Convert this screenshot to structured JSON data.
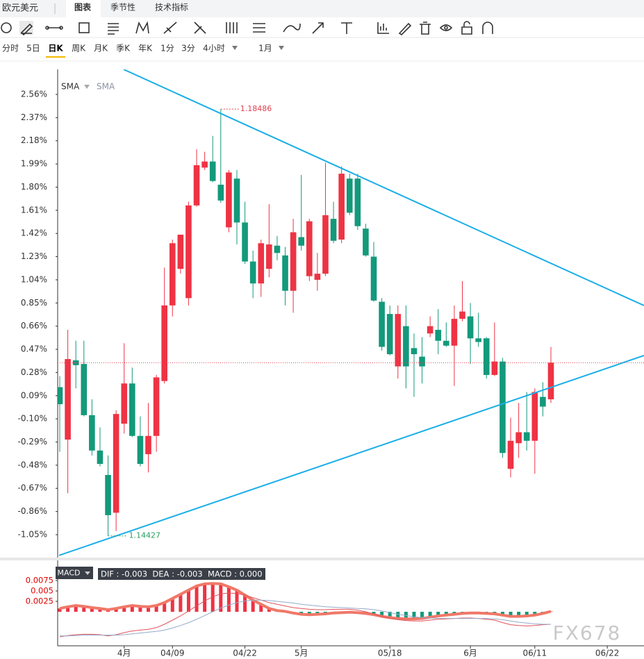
{
  "header": {
    "symbol": "欧元美元",
    "tabs": [
      "图表",
      "季节性",
      "技术指标"
    ],
    "active_tab": 0,
    "periods": [
      "分时",
      "5日",
      "日K",
      "周K",
      "月K",
      "季K",
      "年K",
      "1分",
      "3分",
      "4小时"
    ],
    "active_period": 2,
    "range": "1月"
  },
  "chart_data": [
    {
      "type": "candlestick",
      "indicators": [
        "SMA",
        "SMA"
      ],
      "categories": [
        null,
        null,
        null,
        null,
        null,
        null,
        null,
        null,
        "4月",
        null,
        null,
        null,
        null,
        null,
        "04/09",
        null,
        null,
        null,
        null,
        null,
        null,
        null,
        null,
        "04/22",
        null,
        null,
        null,
        null,
        null,
        null,
        "5月",
        null,
        null,
        null,
        null,
        null,
        null,
        null,
        null,
        null,
        null,
        "05/18",
        null,
        null,
        null,
        null,
        null,
        null,
        null,
        null,
        null,
        "6月",
        null,
        null,
        null,
        null,
        null,
        null,
        null,
        "06/11",
        null,
        null,
        null,
        null,
        null,
        null,
        null,
        null,
        "06/22",
        null,
        null,
        null,
        null
      ],
      "open": [
        0.16,
        -0.27,
        0.38,
        0.35,
        -0.07,
        -0.36,
        -0.56,
        -0.87,
        -0.14,
        0.19,
        -0.24,
        -0.39,
        -0.24,
        0.21,
        0.83,
        1.13,
        0.89,
        1.65,
        1.96,
        2.01,
        1.82,
        1.47,
        1.87,
        1.51,
        1.19,
        1.01,
        1.13,
        1.32,
        1.24,
        0.95,
        1.39,
        1.07,
        1.04,
        1.09,
        1.54,
        1.37,
        1.87,
        1.87,
        1.46,
        1.23,
        0.86,
        0.76,
        0.33,
        0.66,
        0.48,
        0.41,
        0.6,
        0.63,
        0.54,
        0.5,
        0.72,
        0.74,
        0.56,
        0.56,
        0.26,
        0.37,
        -0.51,
        -0.3,
        -0.21,
        -0.28,
        0.08,
        0.06,
        null,
        null,
        null,
        null,
        null,
        null,
        null,
        null,
        null,
        null,
        null
      ],
      "high": [
        0.25,
        0.63,
        0.54,
        0.54,
        0.06,
        -0.17,
        -0.4,
        -0.03,
        0.52,
        0.32,
        -0.08,
        0.03,
        0.26,
        1.14,
        1.37,
        1.41,
        1.68,
        2.11,
        2.09,
        2.22,
        2.44,
        1.94,
        1.94,
        1.68,
        1.28,
        1.37,
        1.66,
        1.4,
        1.31,
        1.54,
        1.9,
        1.54,
        1.26,
        2.0,
        1.68,
        1.97,
        1.91,
        1.91,
        1.5,
        1.35,
        0.89,
        0.83,
        0.83,
        0.83,
        0.6,
        0.57,
        0.74,
        0.8,
        0.69,
        0.83,
        1.03,
        0.85,
        0.77,
        0.57,
        0.69,
        0.4,
        -0.09,
        0.03,
        0.12,
        0.15,
        0.2,
        0.49,
        null,
        null,
        null,
        null,
        null,
        null,
        null,
        null,
        null,
        null,
        null
      ],
      "low": [
        -0.37,
        -0.71,
        0.15,
        -0.08,
        -0.4,
        -0.49,
        -1.06,
        -1.02,
        -0.22,
        -0.25,
        -0.49,
        -0.54,
        -0.37,
        0.19,
        0.74,
        1.09,
        0.83,
        1.64,
        1.94,
        1.84,
        1.67,
        1.43,
        1.33,
        1.17,
        0.89,
        0.9,
        1.06,
        1.2,
        0.83,
        0.77,
        1.28,
        1.03,
        0.95,
        1.07,
        1.34,
        1.34,
        1.57,
        1.45,
        1.23,
        0.86,
        0.46,
        0.42,
        0.23,
        0.15,
        0.08,
        0.19,
        0.57,
        0.43,
        0.49,
        0.17,
        0.7,
        0.35,
        0.49,
        0.23,
        0.25,
        -0.42,
        -0.58,
        -0.42,
        -0.36,
        -0.55,
        -0.08,
        0.03,
        null,
        null,
        null,
        null,
        null,
        null,
        null,
        null,
        null,
        null,
        null
      ],
      "close": [
        0.02,
        0.39,
        0.34,
        -0.07,
        -0.36,
        -0.47,
        -0.89,
        -0.06,
        0.19,
        -0.24,
        -0.47,
        -0.24,
        0.24,
        0.83,
        1.34,
        1.41,
        1.65,
        1.98,
        2.01,
        1.85,
        1.69,
        1.92,
        1.51,
        1.19,
        1.01,
        1.34,
        1.33,
        1.26,
        0.95,
        1.43,
        1.32,
        1.52,
        1.09,
        1.57,
        1.36,
        1.91,
        1.59,
        1.48,
        1.24,
        0.87,
        0.49,
        0.43,
        0.76,
        0.33,
        0.43,
        0.33,
        0.66,
        0.54,
        0.5,
        0.72,
        0.78,
        0.56,
        0.53,
        0.26,
        0.37,
        -0.38,
        -0.28,
        -0.21,
        -0.28,
        0.12,
        0.0,
        0.36,
        null,
        null,
        null,
        null,
        null,
        null,
        null,
        null,
        null,
        null,
        null
      ],
      "up_color": "#ee3344",
      "down_color": "#13997b",
      "high_label": "1.18486",
      "low_label": "1.14427",
      "trendlines": [
        {
          "x": [
            7.94,
            72.56
          ],
          "y": [
            2.765,
            0.829
          ]
        },
        {
          "x": [
            -0.09,
            72.56
          ],
          "y": [
            -1.22,
            0.419
          ]
        }
      ],
      "trend_color": "#1aaee8",
      "ylim": [
        -1.238,
        2.765
      ],
      "yticks": [
        {
          "value": 2.56,
          "label": "2.56%"
        },
        {
          "value": 2.37,
          "label": "2.37%"
        },
        {
          "value": 2.18,
          "label": "2.18%"
        },
        {
          "value": 1.99,
          "label": "1.99%"
        },
        {
          "value": 1.8,
          "label": "1.80%"
        },
        {
          "value": 1.61,
          "label": "1.61%"
        },
        {
          "value": 1.42,
          "label": "1.42%"
        },
        {
          "value": 1.23,
          "label": "1.23%"
        },
        {
          "value": 1.04,
          "label": "1.04%"
        },
        {
          "value": 0.85,
          "label": "0.85%"
        },
        {
          "value": 0.66,
          "label": "0.66%"
        },
        {
          "value": 0.47,
          "label": "0.47%"
        },
        {
          "value": 0.28,
          "label": "0.28%"
        },
        {
          "value": 0.09,
          "label": "0.09%"
        },
        {
          "value": -0.1,
          "label": "-0.10%"
        },
        {
          "value": -0.29,
          "label": "-0.29%"
        },
        {
          "value": -0.48,
          "label": "-0.48%"
        },
        {
          "value": -0.67,
          "label": "-0.67%"
        },
        {
          "value": -0.86,
          "label": "-0.86%"
        },
        {
          "value": -1.05,
          "label": "-1.05%"
        }
      ]
    },
    {
      "type": "macd",
      "title": "MACD",
      "readout": "DIF : -0.003  DEA : -0.003  MACD : 0.000",
      "series": [
        {
          "name": "DIF",
          "color": "#e2525a",
          "values": [
            -0.006,
            -0.0057,
            -0.0055,
            -0.0054,
            -0.0054,
            -0.0055,
            -0.0058,
            -0.0055,
            -0.005,
            -0.0046,
            -0.0044,
            -0.0042,
            -0.0038,
            -0.003,
            -0.002,
            -0.001,
            0.0002,
            0.0014,
            0.0026,
            0.0036,
            0.0043,
            0.0045,
            0.0044,
            0.004,
            0.0034,
            0.0028,
            0.0022,
            0.0018,
            0.0014,
            0.001,
            0.0008,
            0.0006,
            0.0005,
            0.0005,
            0.0006,
            0.0006,
            0.0006,
            0.0004,
            0.0,
            -0.0005,
            -0.0011,
            -0.0016,
            -0.0019,
            -0.0021,
            -0.0022,
            -0.0022,
            -0.002,
            -0.0018,
            -0.0017,
            -0.0016,
            -0.0015,
            -0.0015,
            -0.0016,
            -0.0018,
            -0.002,
            -0.0026,
            -0.0031,
            -0.0033,
            -0.0034,
            -0.0033,
            -0.0031,
            -0.003
          ]
        },
        {
          "name": "DEA",
          "color": "#93aacb",
          "values": [
            -0.0058,
            -0.0058,
            -0.0057,
            -0.0056,
            -0.0056,
            -0.0056,
            -0.0056,
            -0.0056,
            -0.0055,
            -0.0053,
            -0.0051,
            -0.0049,
            -0.0047,
            -0.0044,
            -0.0039,
            -0.0033,
            -0.0026,
            -0.0018,
            -0.0009,
            0.0,
            0.0009,
            0.0016,
            0.0022,
            0.0026,
            0.0028,
            0.0028,
            0.0027,
            0.0025,
            0.0023,
            0.0021,
            0.0018,
            0.0016,
            0.0014,
            0.0012,
            0.0011,
            0.001,
            0.0009,
            0.0008,
            0.0007,
            0.0005,
            0.0002,
            -0.0002,
            -0.0006,
            -0.0009,
            -0.0012,
            -0.0014,
            -0.0015,
            -0.0016,
            -0.0016,
            -0.0016,
            -0.0016,
            -0.0016,
            -0.0016,
            -0.0016,
            -0.0017,
            -0.0019,
            -0.0022,
            -0.0025,
            -0.0027,
            -0.0029,
            -0.003,
            -0.003
          ]
        }
      ],
      "histogram": {
        "values": [
          0.0008,
          0.0012,
          0.0015,
          0.0013,
          0.001,
          0.0008,
          0.0005,
          0.0008,
          0.0012,
          0.0015,
          0.0013,
          0.0012,
          0.0015,
          0.0022,
          0.0032,
          0.0042,
          0.0052,
          0.0062,
          0.0067,
          0.0068,
          0.0067,
          0.006,
          0.0052,
          0.004,
          0.0028,
          0.0018,
          0.0008,
          0.0003,
          0.0001,
          -0.0003,
          -0.0006,
          -0.0007,
          -0.0006,
          -0.0005,
          -0.0003,
          -0.0002,
          -0.0001,
          -0.0002,
          -0.0004,
          -0.0007,
          -0.0011,
          -0.0014,
          -0.0016,
          -0.0017,
          -0.0017,
          -0.0016,
          -0.0013,
          -0.001,
          -0.0008,
          -0.0006,
          -0.0004,
          -0.0003,
          -0.0003,
          -0.0004,
          -0.0005,
          -0.0008,
          -0.0011,
          -0.0011,
          -0.001,
          -0.0008,
          -0.0004,
          0.0001
        ],
        "up_color": "#ee3344",
        "down_color": "#13997b",
        "line_color": "#f07868"
      },
      "ylim": [
        -0.009,
        0.011
      ],
      "yticks": [
        0.0025,
        0.005,
        0.0075
      ],
      "watermark": "FX678"
    }
  ]
}
